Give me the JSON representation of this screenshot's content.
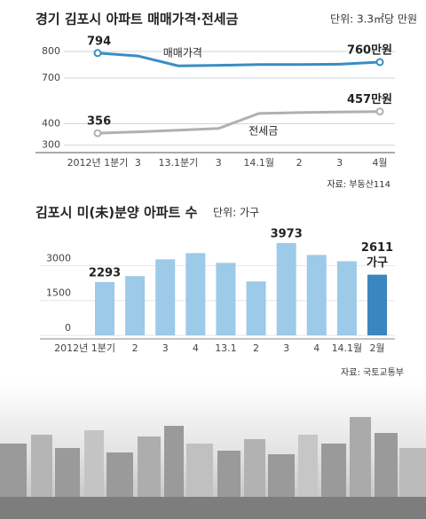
{
  "chart_data": [
    {
      "type": "line",
      "title": "경기 김포시 아파트 매매가격·전세금",
      "unit": "단위: 3.3㎡당 만원",
      "categories": [
        "2012년 1분기",
        "3",
        "13.1분기",
        "3",
        "14.1월",
        "2",
        "3",
        "4월"
      ],
      "series": [
        {
          "name": "매매가격",
          "color": "#3a8cc4",
          "values": [
            794,
            783,
            746,
            748,
            751,
            751,
            752,
            760
          ],
          "value_labels": [
            "794",
            null,
            null,
            null,
            null,
            null,
            null,
            "760만원"
          ]
        },
        {
          "name": "전세금",
          "color": "#b0b0b0",
          "axis": "y2",
          "values": [
            356,
            362,
            370,
            378,
            448,
            452,
            455,
            457
          ],
          "value_labels": [
            "356",
            null,
            null,
            null,
            null,
            null,
            null,
            "457만원"
          ]
        }
      ],
      "ylim": [
        690,
        810
      ],
      "yticks": [
        700,
        800
      ],
      "y2lim": [
        290,
        460
      ],
      "y2ticks": [
        300,
        400
      ],
      "grid": true,
      "source": "자료: 부동산114"
    },
    {
      "type": "bar",
      "title": "김포시 미(未)분양 아파트 수",
      "unit": "단위: 가구",
      "categories": [
        "2012년 1분기",
        "2",
        "3",
        "4",
        "13.1",
        "2",
        "3",
        "4",
        "14.1월",
        "2월"
      ],
      "values": [
        2293,
        2550,
        3270,
        3540,
        3120,
        2320,
        3973,
        3460,
        3190,
        2611
      ],
      "value_labels": [
        "2293",
        null,
        null,
        null,
        null,
        null,
        "3973",
        null,
        null,
        "2611"
      ],
      "annotation": "가구",
      "color": "#9ccae8",
      "highlight_color": "#3a86c0",
      "ylim": [
        0,
        4200
      ],
      "yticks": [
        0,
        1500,
        3000
      ],
      "grid": true,
      "source": "자료: 국토교통부"
    }
  ]
}
